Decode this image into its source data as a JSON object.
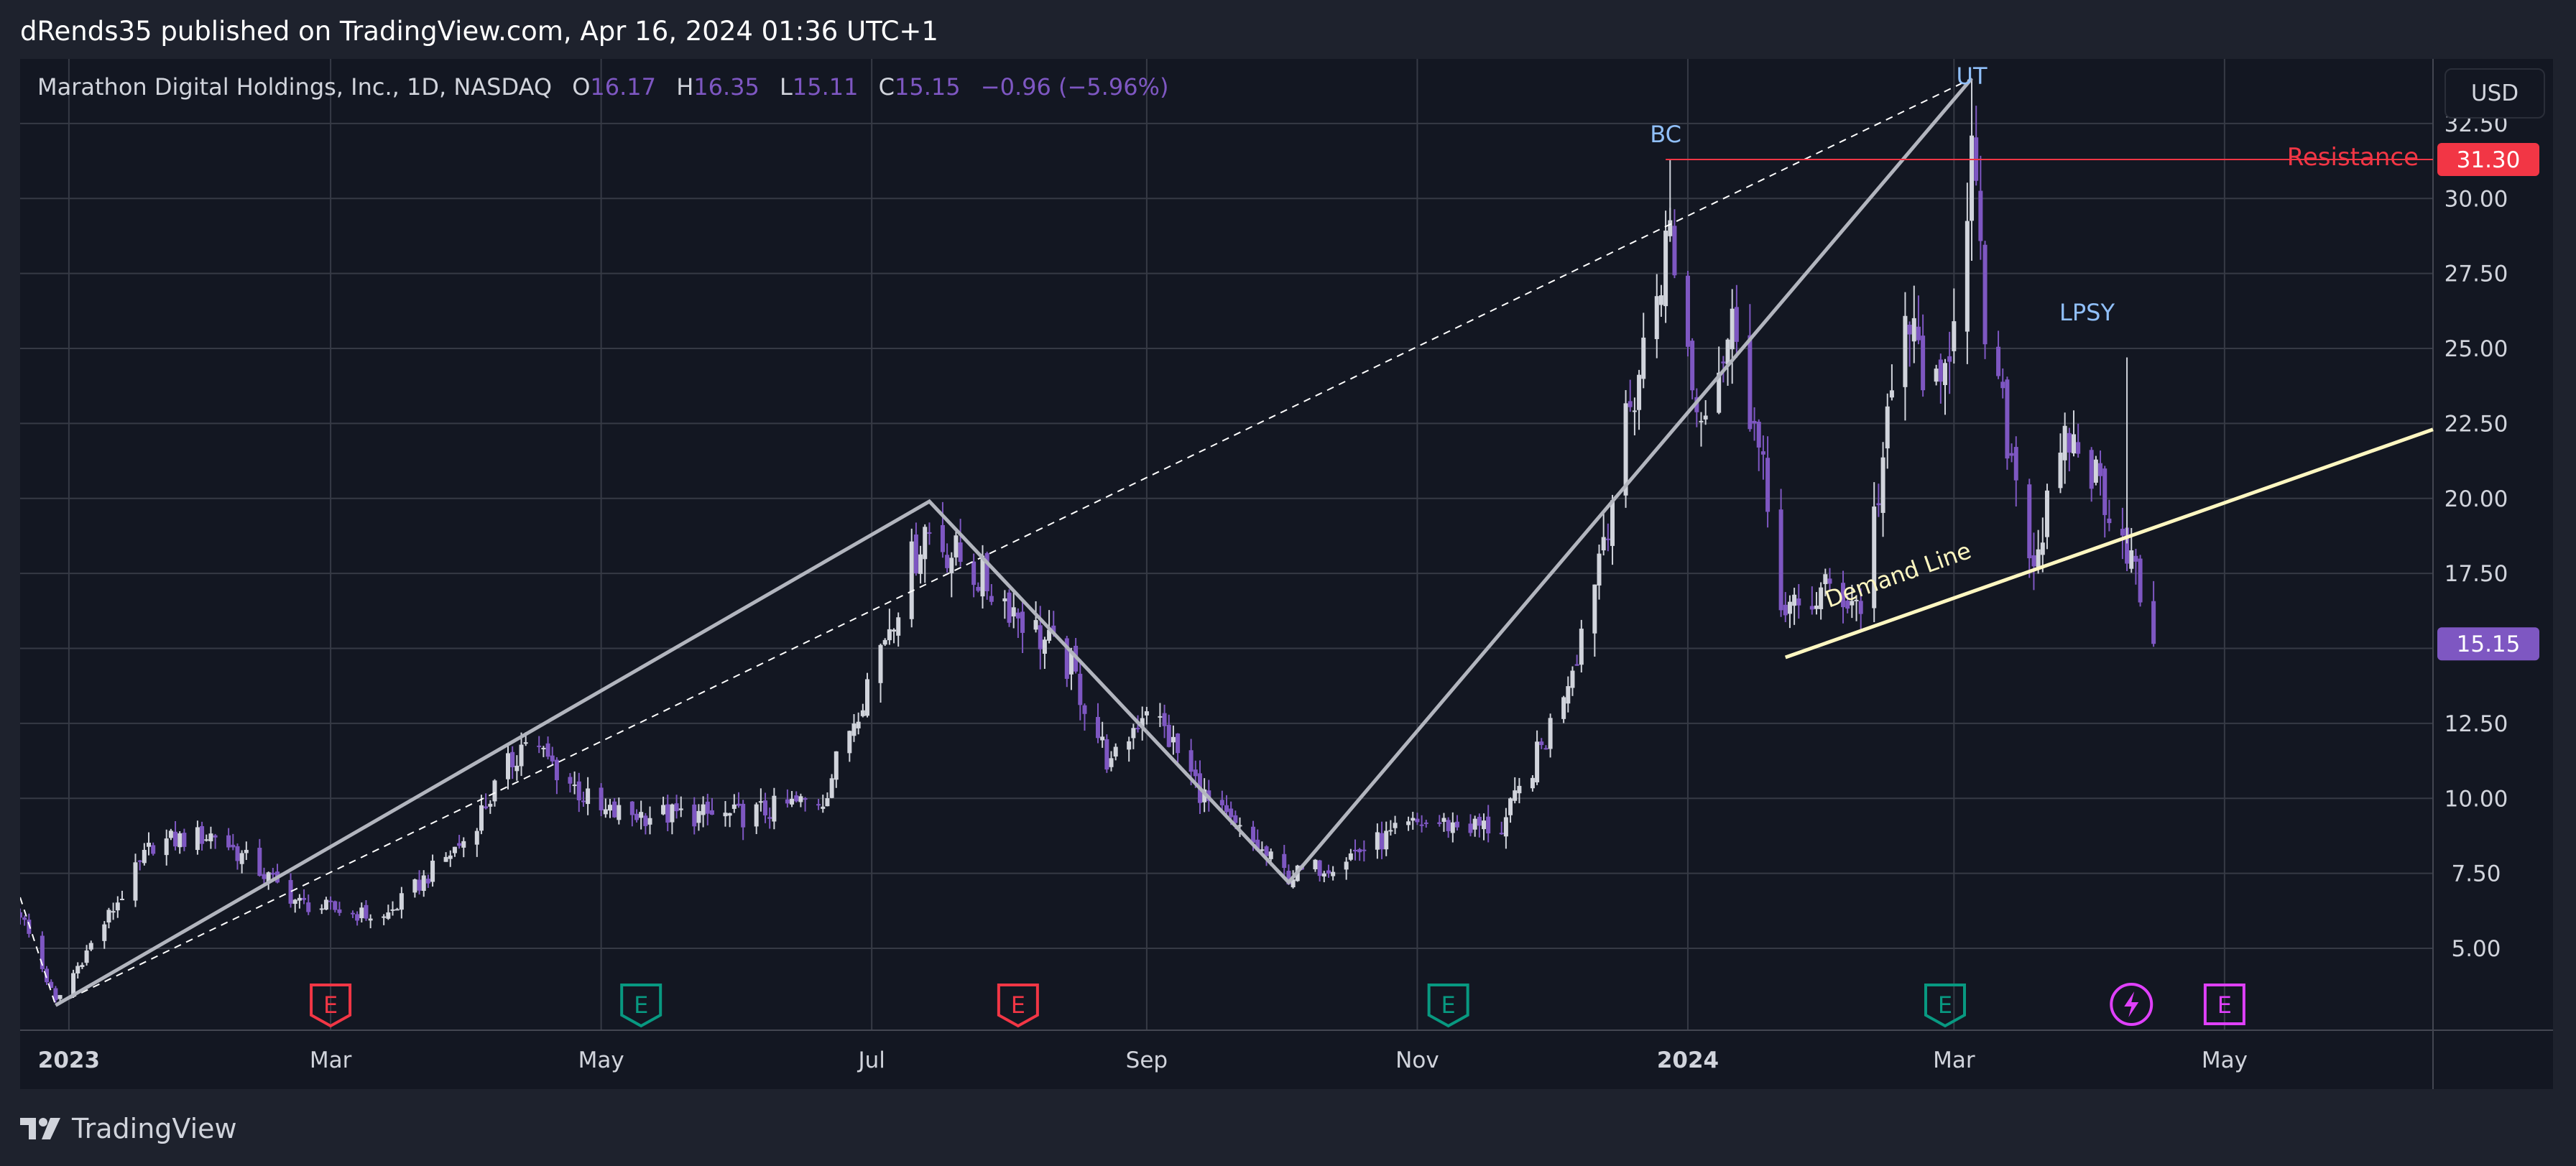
{
  "header": {
    "text": "dRends35 published on TradingView.com, Apr 16, 2024 01:36 UTC+1"
  },
  "footer": {
    "brand": "TradingView"
  },
  "legend": {
    "symbol": "Marathon Digital Holdings, Inc., 1D, NASDAQ",
    "o_label": "O",
    "o_value": "16.17",
    "h_label": "H",
    "h_value": "16.35",
    "l_label": "L",
    "l_value": "15.11",
    "c_label": "C",
    "c_value": "15.15",
    "change": "−0.96 (−5.96%)"
  },
  "price_scale": {
    "currency_button": "USD",
    "ticks": [
      "5.00",
      "7.50",
      "10.00",
      "12.50",
      "15.00",
      "17.50",
      "20.00",
      "22.50",
      "25.00",
      "27.50",
      "30.00",
      "32.50"
    ],
    "resistance_tag": "31.30",
    "last_price_tag": "15.15"
  },
  "time_scale": {
    "ticks": [
      {
        "label": "2023",
        "bold": true
      },
      {
        "label": "Mar",
        "bold": false
      },
      {
        "label": "May",
        "bold": false
      },
      {
        "label": "Jul",
        "bold": false
      },
      {
        "label": "Sep",
        "bold": false
      },
      {
        "label": "Nov",
        "bold": false
      },
      {
        "label": "2024",
        "bold": true
      },
      {
        "label": "Mar",
        "bold": false
      },
      {
        "label": "May",
        "bold": false
      }
    ]
  },
  "annotations": {
    "bc": "BC",
    "ut": "UT",
    "lpsy": "LPSY",
    "resistance": "Resistance",
    "demand_line": "Demand Line"
  },
  "events": [
    {
      "date": "2023-03-01",
      "type": "earnings-miss",
      "glyph": "E"
    },
    {
      "date": "2023-05-10",
      "type": "earnings-beat",
      "glyph": "E"
    },
    {
      "date": "2023-08-03",
      "type": "earnings-miss",
      "glyph": "E"
    },
    {
      "date": "2023-11-08",
      "type": "earnings-beat",
      "glyph": "E"
    },
    {
      "date": "2024-02-28",
      "type": "earnings-beat",
      "glyph": "E"
    },
    {
      "date": "2024-04-10",
      "type": "dividend-flash",
      "glyph": "⚡"
    },
    {
      "date": "2024-05-01",
      "type": "upcoming-earnings",
      "glyph": "E"
    }
  ],
  "colors": {
    "background": "#131722",
    "grid": "#363a45",
    "up_candle": "#d1d4dc",
    "down_candle": "#7e57c2",
    "resistance": "#f23645",
    "last_price": "#7e57c2",
    "trend_line": "#b2b5be",
    "demand_line": "#fff7c1",
    "annotation_text": "#90bff9",
    "earnings_miss": "#f23645",
    "earnings_beat": "#089981",
    "upcoming": "#e040fb"
  },
  "chart_data": {
    "type": "candlestick",
    "symbol": "MARA",
    "timeframe": "1D",
    "ylim": [
      3.0,
      34.0
    ],
    "xlim": [
      "2022-12-21",
      "2024-06-17"
    ],
    "resistance_level": 31.3,
    "last_close": 15.15,
    "key_points": [
      {
        "date": "2022-12-21",
        "value": 6.2
      },
      {
        "date": "2022-12-29",
        "value": 3.2
      },
      {
        "date": "2023-01-20",
        "value": 8.5
      },
      {
        "date": "2023-02-03",
        "value": 8.8
      },
      {
        "date": "2023-02-22",
        "value": 6.5
      },
      {
        "date": "2023-03-13",
        "value": 6.0
      },
      {
        "date": "2023-03-31",
        "value": 8.6
      },
      {
        "date": "2023-04-14",
        "value": 12.0
      },
      {
        "date": "2023-05-01",
        "value": 9.5
      },
      {
        "date": "2023-06-01",
        "value": 9.4
      },
      {
        "date": "2023-06-20",
        "value": 10.0
      },
      {
        "date": "2023-07-13",
        "value": 19.0
      },
      {
        "date": "2023-08-01",
        "value": 16.5
      },
      {
        "date": "2023-08-15",
        "value": 14.3
      },
      {
        "date": "2023-08-24",
        "value": 11.0
      },
      {
        "date": "2023-09-01",
        "value": 13.2
      },
      {
        "date": "2023-09-15",
        "value": 9.8
      },
      {
        "date": "2023-10-03",
        "value": 7.4
      },
      {
        "date": "2023-10-12",
        "value": 7.8
      },
      {
        "date": "2023-11-02",
        "value": 9.2
      },
      {
        "date": "2023-11-20",
        "value": 9.0
      },
      {
        "date": "2023-11-30",
        "value": 12.0
      },
      {
        "date": "2023-12-07",
        "value": 15.0
      },
      {
        "date": "2023-12-14",
        "value": 19.5
      },
      {
        "date": "2023-12-28",
        "value": 29.0
      },
      {
        "date": "2024-01-03",
        "value": 23.0
      },
      {
        "date": "2024-01-12",
        "value": 26.0
      },
      {
        "date": "2024-01-23",
        "value": 16.0
      },
      {
        "date": "2024-02-02",
        "value": 17.0
      },
      {
        "date": "2024-02-09",
        "value": 16.5
      },
      {
        "date": "2024-02-19",
        "value": 26.0
      },
      {
        "date": "2024-02-27",
        "value": 23.0
      },
      {
        "date": "2024-03-05",
        "value": 31.5
      },
      {
        "date": "2024-03-08",
        "value": 25.5
      },
      {
        "date": "2024-03-19",
        "value": 18.0
      },
      {
        "date": "2024-03-27",
        "value": 22.0
      },
      {
        "date": "2024-04-03",
        "value": 20.5
      },
      {
        "date": "2024-04-09",
        "value": 18.5
      },
      {
        "date": "2024-04-15",
        "value": 15.15
      }
    ],
    "extremes": [
      {
        "date": "2023-12-28",
        "high": 31.3
      },
      {
        "date": "2024-03-05",
        "high": 34.0
      },
      {
        "date": "2024-04-09",
        "high": 24.7
      }
    ],
    "drawings": {
      "zigzag": [
        {
          "date": "2022-12-29",
          "value": 3.1
        },
        {
          "date": "2023-07-14",
          "value": 19.9
        },
        {
          "date": "2023-10-03",
          "value": 7.2
        },
        {
          "date": "2024-03-05",
          "value": 34.0
        }
      ],
      "dashed_channel": [
        {
          "date": "2022-12-21",
          "value": 6.7
        },
        {
          "date": "2022-12-29",
          "value": 3.1
        },
        {
          "date": "2024-03-05",
          "value": 34.0
        }
      ],
      "demand_line": [
        {
          "date": "2024-01-23",
          "value": 14.7
        },
        {
          "date": "2024-06-17",
          "value": 22.3
        }
      ]
    }
  }
}
